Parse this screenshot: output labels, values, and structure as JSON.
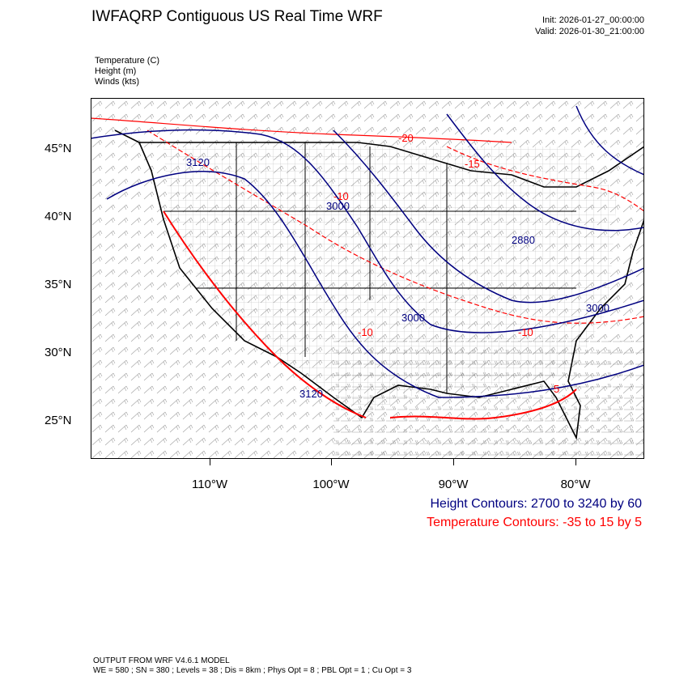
{
  "header": {
    "title": "IWFAQRP Contiguous US Real Time WRF",
    "init": "Init: 2026-01-27_00:00:00",
    "valid": "Valid: 2026-01-30_21:00:00"
  },
  "fields": [
    "Temperature   (C)",
    "Height   (m)",
    "Winds   (kts)"
  ],
  "lat_labels": [
    "45°N",
    "40°N",
    "35°N",
    "30°N",
    "25°N"
  ],
  "lon_labels": [
    "110°W",
    "100°W",
    "90°W",
    "80°W"
  ],
  "contour_labels": {
    "height": [
      "3120",
      "3000",
      "2880",
      "3000",
      "3000",
      "3120"
    ],
    "temperature": [
      "-20",
      "-15",
      "-10",
      "-10",
      "-10",
      "5"
    ]
  },
  "legend": {
    "height": "Height Contours: 2700 to 3240 by 60",
    "temperature": "Temperature Contours: -35 to 15 by 5"
  },
  "footer": {
    "line1": "OUTPUT FROM WRF V4.6.1 MODEL",
    "line2": "WE = 580 ; SN = 380 ; Levels = 38 ; Dis = 8km ; Phys Opt = 8 ; PBL Opt = 1 ; Cu Opt = 3"
  },
  "colors": {
    "height": "#000080",
    "temperature": "#ff0000",
    "map": "#000000"
  }
}
